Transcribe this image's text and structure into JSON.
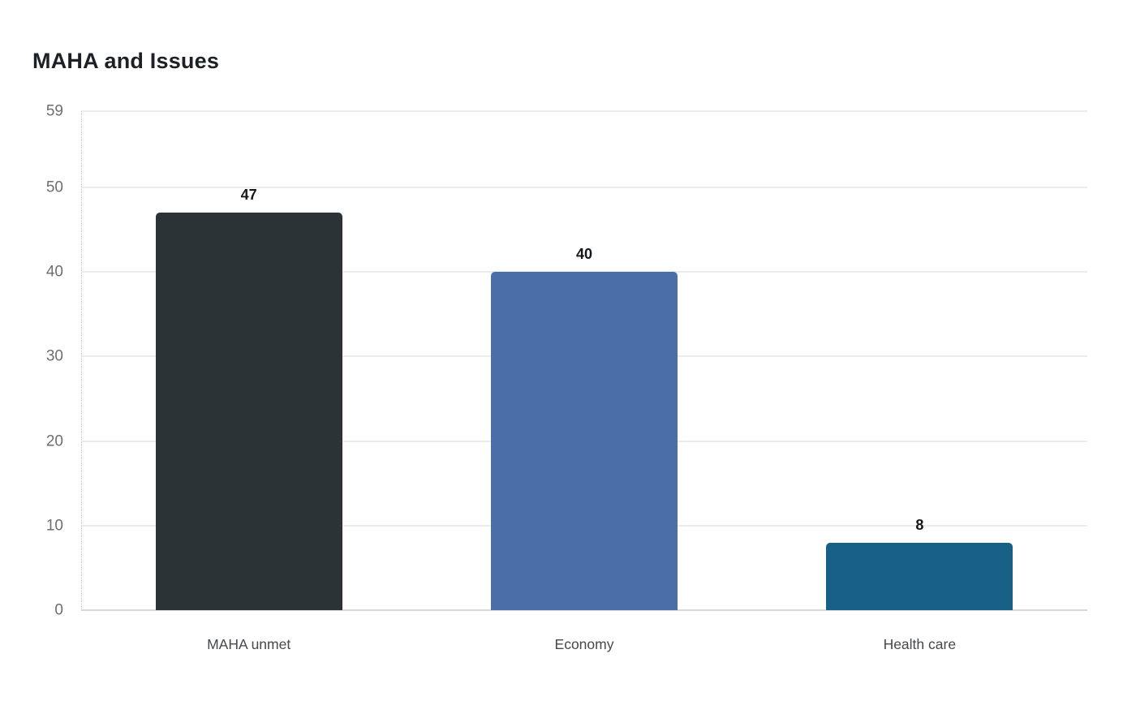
{
  "title": "MAHA and Issues",
  "chart_data": {
    "type": "bar",
    "title": "MAHA and Issues",
    "categories": [
      "MAHA unmet",
      "Economy",
      "Health care"
    ],
    "values": [
      47,
      40,
      8
    ],
    "value_labels": [
      "47",
      "40",
      "8"
    ],
    "bar_colors": [
      "#2b3337",
      "#4a6fa8",
      "#175f85"
    ],
    "yticks": [
      0,
      10,
      20,
      30,
      40,
      50,
      59
    ],
    "ylim": [
      0,
      59
    ],
    "xlabel": "",
    "ylabel": "",
    "grid": true,
    "legend": "none",
    "background": "#ffffff"
  },
  "colors": {
    "background": "#ffffff",
    "title_text": "#1d2126",
    "tick_label": "#6e6e6e",
    "category_label": "#45484c",
    "value_label": "#14171a",
    "gridline": "#ececec",
    "zero_line": "#d9d9d9",
    "axis_dotted": "#c9c9c9"
  }
}
